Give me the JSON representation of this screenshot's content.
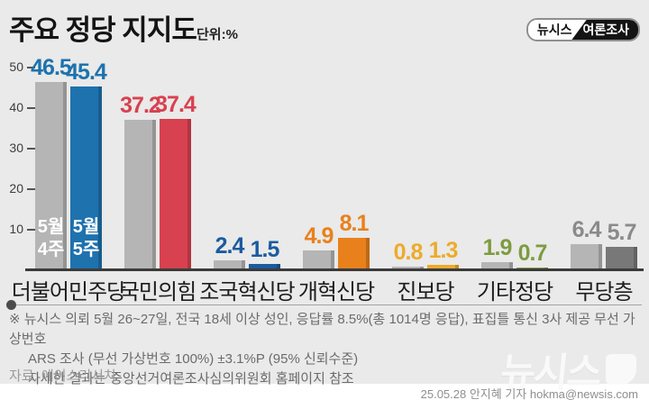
{
  "header": {
    "title": "주요 정당 지지도",
    "unit": "단위:%",
    "badge_left": "뉴시스",
    "badge_right": "여론조사"
  },
  "chart_data": {
    "type": "bar",
    "title": "주요 정당 지지도",
    "unit": "%",
    "categories": [
      "더불어민주당",
      "국민의힘",
      "조국혁신당",
      "개혁신당",
      "진보당",
      "기타정당",
      "무당층"
    ],
    "series": [
      {
        "name": "5월 4주",
        "values": [
          46.5,
          37.2,
          2.4,
          4.9,
          0.8,
          1.9,
          6.4
        ]
      },
      {
        "name": "5월 5주",
        "values": [
          45.4,
          37.4,
          1.5,
          8.1,
          1.3,
          0.7,
          5.7
        ]
      }
    ],
    "legend_lines": [
      [
        "5월",
        "4주"
      ],
      [
        "5월",
        "5주"
      ]
    ],
    "legend_position": "inside-first-group-bars",
    "ylim": [
      0,
      50
    ],
    "yticks": [
      10,
      20,
      30,
      40,
      50
    ],
    "grid": false,
    "prev_bar_color": "#b5b5b5",
    "curr_bar_colors": [
      "#1e72ae",
      "#d8414f",
      "#1b5ba0",
      "#e8811c",
      "#eeaa2b",
      "#7e9b40",
      "#787878"
    ],
    "value_label_colors": [
      "#1e72ae",
      "#d8414f",
      "#1b5ba0",
      "#e8811c",
      "#eeaa2b",
      "#7e9b40",
      "#8a8a8a"
    ]
  },
  "notes": {
    "line1": "※ 뉴시스 의뢰 5월 26~27일, 전국 18세 이상 성인, 응답률 8.5%(총 1014명 응답), 표집틀 통신 3사 제공 무선 가상번호",
    "line2": "ARS 조사 (무선 가상번호 100%) ±3.1%P (95% 신뢰수준)",
    "line3": "자세한 결과는 중앙선거여론조사심의위원회 홈페이지 참조",
    "source": "자료: 에이스리서치"
  },
  "footer": {
    "byline": "25.05.28 안지혜 기자 hokma@newsis.com",
    "watermark": "뉴시스"
  }
}
